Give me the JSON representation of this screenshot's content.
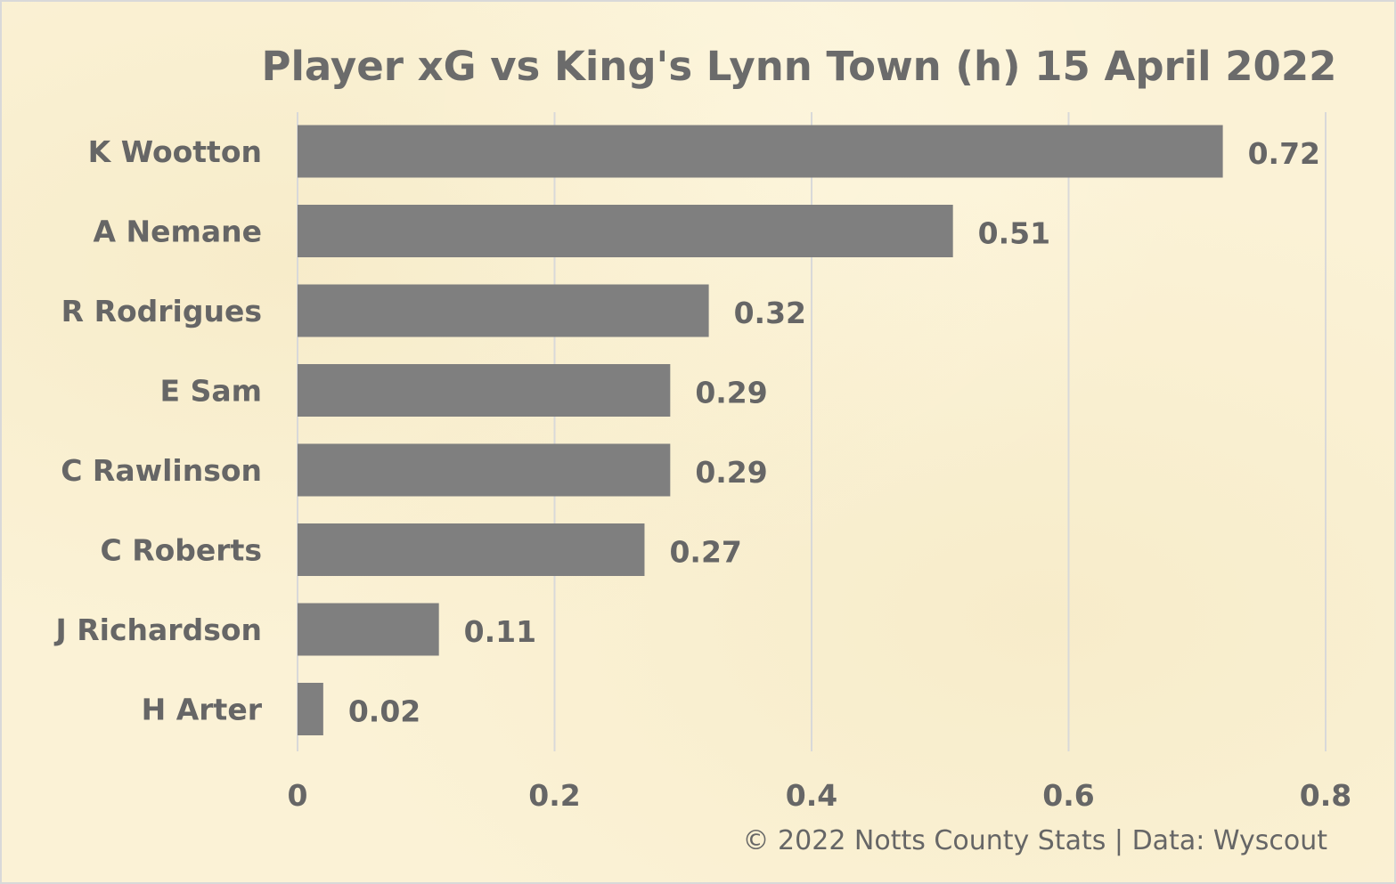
{
  "chart_data": {
    "type": "bar",
    "orientation": "horizontal",
    "title": "Player xG vs King's Lynn Town (h) 15 April 2022",
    "categories": [
      "K Wootton",
      "A Nemane",
      "R Rodrigues",
      "E Sam",
      "C Rawlinson",
      "C Roberts",
      "J Richardson",
      "H Arter"
    ],
    "values": [
      0.72,
      0.51,
      0.32,
      0.29,
      0.29,
      0.27,
      0.11,
      0.02
    ],
    "value_labels": [
      "0.72",
      "0.51",
      "0.32",
      "0.29",
      "0.29",
      "0.27",
      "0.11",
      "0.02"
    ],
    "xlabel": "",
    "ylabel": "",
    "xlim": [
      0,
      0.8
    ],
    "x_ticks": [
      0,
      0.2,
      0.4,
      0.6,
      0.8
    ],
    "x_tick_labels": [
      "0",
      "0.2",
      "0.4",
      "0.6",
      "0.8"
    ],
    "grid": true,
    "legend": "none",
    "bar_color": "#7f7f7f"
  },
  "footer": {
    "credit": "© 2022 Notts County Stats | Data: Wyscout"
  },
  "colors": {
    "background": "#fbf2d6",
    "text": "#666666",
    "grid": "#d9d9d9",
    "border": "#d9d9d9"
  }
}
